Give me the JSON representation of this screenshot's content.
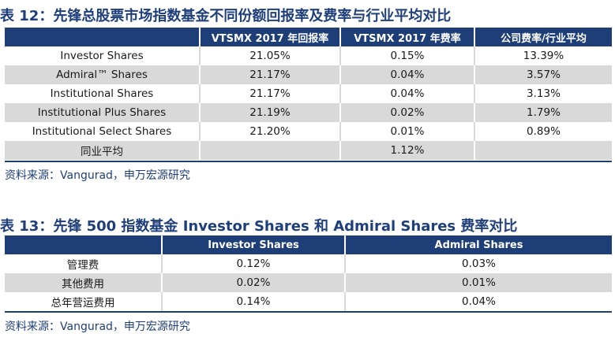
{
  "table12": {
    "caption": "表 12：先锋总股票市场指数基金不同份额回报率及费率与行业平均对比",
    "headers": [
      "",
      "VTSMX 2017 年回报率",
      "VTSMX 2017 年费率",
      "公司费率/行业平均"
    ],
    "rows": [
      [
        "Investor Shares",
        "21.05%",
        "0.15%",
        "13.39%"
      ],
      [
        "Admiral™  Shares",
        "21.17%",
        "0.04%",
        "3.57%"
      ],
      [
        "Institutional Shares",
        "21.17%",
        "0.04%",
        "3.13%"
      ],
      [
        "Institutional Plus Shares",
        "21.19%",
        "0.02%",
        "1.79%"
      ],
      [
        "Institutional Select Shares",
        "21.20%",
        "0.01%",
        "0.89%"
      ],
      [
        "同业平均",
        "",
        "1.12%",
        ""
      ]
    ],
    "source": "资料来源：Vangurad，申万宏源研究"
  },
  "table13": {
    "caption": "表 13：先锋 500 指数基金 Investor Shares 和 Admiral Shares 费率对比",
    "headers": [
      "",
      "Investor Shares",
      "Admiral Shares"
    ],
    "rows": [
      [
        "管理费",
        "0.12%",
        "0.03%"
      ],
      [
        "其他费用",
        "0.02%",
        "0.01%"
      ],
      [
        "总年营运费用",
        "0.14%",
        "0.04%"
      ]
    ],
    "source": "资料来源：Vangurad，申万宏源研究"
  }
}
